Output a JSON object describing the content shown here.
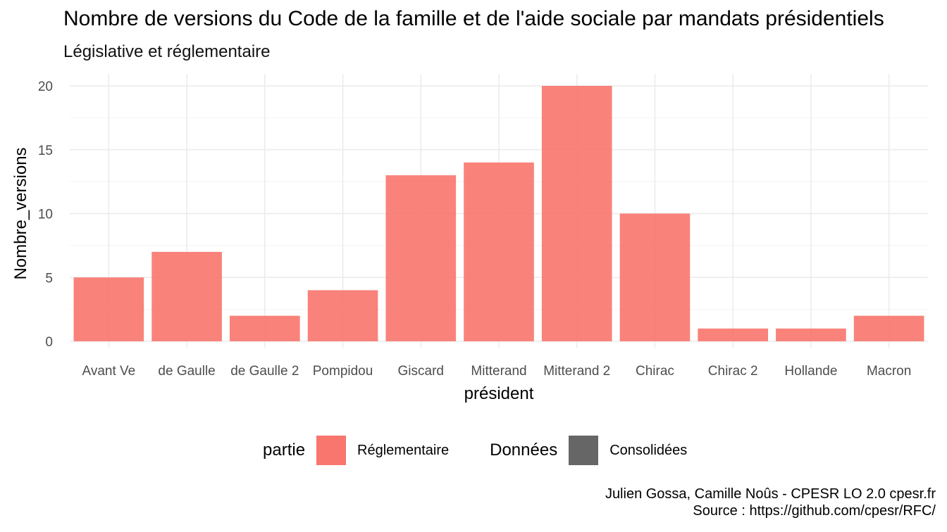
{
  "chart_data": {
    "type": "bar",
    "title": "Nombre de versions du Code de la famille et de l'aide sociale par mandats présidentiels",
    "subtitle": "Législative et réglementaire",
    "xlabel": "président",
    "ylabel": "Nombre_versions",
    "categories": [
      "Avant Ve",
      "de Gaulle",
      "de Gaulle 2",
      "Pompidou",
      "Giscard",
      "Mitterand",
      "Mitterand 2",
      "Chirac",
      "Chirac 2",
      "Hollande",
      "Macron"
    ],
    "series": [
      {
        "name": "Réglementaire",
        "values": [
          5,
          7,
          2,
          4,
          13,
          14,
          20,
          10,
          1,
          1,
          2
        ],
        "color": "#f8766d"
      }
    ],
    "ylim": [
      0,
      20
    ],
    "yticks": [
      0,
      5,
      10,
      15,
      20
    ],
    "grid": true,
    "legend_position": "bottom"
  },
  "legend": {
    "partie_title": "partie",
    "partie_item": "Réglementaire",
    "partie_color": "#f8766d",
    "donnees_title": "Données",
    "donnees_item": "Consolidées",
    "donnees_color": "#666666"
  },
  "caption": {
    "line1": "Julien Gossa, Camille Noûs - CPESR LO 2.0 cpesr.fr",
    "line2": "Source : https://github.com/cpesr/RFC/"
  }
}
